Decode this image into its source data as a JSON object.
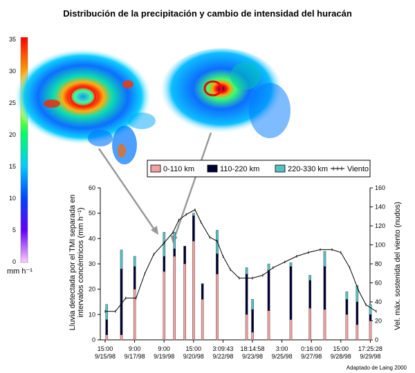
{
  "title": "Distribución de la precipitación y cambio de intensidad del huracán",
  "credit": "Adaptado de Laing 2000",
  "colorbar": {
    "unit": "mm h⁻¹",
    "ticks": [
      "35",
      "30",
      "25",
      "20",
      "15",
      "10",
      "5",
      "0"
    ],
    "colors": [
      "#ff0000",
      "#ff9900",
      "#ffff00",
      "#00ff66",
      "#00ccff",
      "#0044ff",
      "#6600ff",
      "#ffccff"
    ]
  },
  "legend": [
    {
      "label": "0-110 km",
      "color": "#f2a0a0"
    },
    {
      "label": "110-220 km",
      "color": "#000033"
    },
    {
      "label": "220-330 km",
      "color": "#55c2c2"
    },
    {
      "label": "Viento",
      "color": "#000000"
    }
  ],
  "chart_data": {
    "type": "bar",
    "ylabel": "Lluvia detectada por el TMI separada en intervalos concéntricos (mm h⁻¹)",
    "y2label": "Vel. máx. sostenida del viento (nudos)",
    "ylim": [
      0,
      60
    ],
    "y2lim": [
      0,
      160
    ],
    "yticks": [
      "0",
      "10",
      "20",
      "30",
      "40",
      "50",
      "60"
    ],
    "y2ticks": [
      "0",
      "20",
      "40",
      "60",
      "80",
      "100",
      "120",
      "140",
      "160"
    ],
    "xticks": [
      {
        "time": "15:00",
        "date": "9/15/98"
      },
      {
        "time": "9:00",
        "date": "9/17/98"
      },
      {
        "time": "9:00",
        "date": "9/19/98"
      },
      {
        "time": "15:00",
        "date": "9/20/98"
      },
      {
        "time": "3:09:43",
        "date": "9/22/98"
      },
      {
        "time": "18:14:58",
        "date": "9/23/98"
      },
      {
        "time": "3:00",
        "date": "9/25/98"
      },
      {
        "time": "0:16:00",
        "date": "9/27/98"
      },
      {
        "time": "15:00",
        "date": "9/28/98"
      },
      {
        "time": "17:25:28",
        "date": "9/29/98"
      }
    ],
    "stacked_bars": [
      {
        "pos": 0.05,
        "v": [
          2,
          6,
          6
        ]
      },
      {
        "pos": 0.55,
        "v": [
          2,
          26,
          7.5
        ]
      },
      {
        "pos": 1.0,
        "v": [
          20,
          9,
          4
        ]
      },
      {
        "pos": 2.0,
        "v": [
          27,
          6,
          9.5
        ]
      },
      {
        "pos": 2.35,
        "v": [
          33,
          3,
          6.5
        ]
      },
      {
        "pos": 2.7,
        "v": [
          30,
          7,
          0
        ]
      },
      {
        "pos": 3.0,
        "v": [
          39,
          10,
          1
        ]
      },
      {
        "pos": 3.3,
        "v": [
          16,
          6,
          0.3
        ]
      },
      {
        "pos": 3.8,
        "v": [
          26,
          8,
          9.3
        ]
      },
      {
        "pos": 4.8,
        "v": [
          10,
          16,
          2.5
        ]
      },
      {
        "pos": 5.0,
        "v": [
          3,
          9,
          4
        ]
      },
      {
        "pos": 5.55,
        "v": [
          11.5,
          16,
          2.5
        ]
      },
      {
        "pos": 6.3,
        "v": [
          8,
          21,
          1.5
        ]
      },
      {
        "pos": 6.95,
        "v": [
          12.5,
          11,
          2
        ]
      },
      {
        "pos": 7.45,
        "v": [
          12,
          17,
          6
        ]
      },
      {
        "pos": 8.2,
        "v": [
          10,
          6,
          3
        ]
      },
      {
        "pos": 8.55,
        "v": [
          6,
          9,
          6.5
        ]
      },
      {
        "pos": 9.0,
        "v": [
          7.5,
          2.5,
          4
        ]
      }
    ],
    "wind": [
      [
        0,
        30
      ],
      [
        0.35,
        30
      ],
      [
        0.7,
        44
      ],
      [
        1.05,
        44
      ],
      [
        1.35,
        70
      ],
      [
        1.65,
        90
      ],
      [
        2.0,
        102
      ],
      [
        2.3,
        113
      ],
      [
        2.5,
        126
      ],
      [
        2.75,
        132
      ],
      [
        3.05,
        137
      ],
      [
        3.25,
        124
      ],
      [
        3.55,
        108
      ],
      [
        3.8,
        104
      ],
      [
        4.0,
        88
      ],
      [
        4.25,
        74
      ],
      [
        4.55,
        65
      ],
      [
        5.0,
        65
      ],
      [
        5.35,
        68
      ],
      [
        5.7,
        76
      ],
      [
        6.1,
        82
      ],
      [
        6.5,
        88
      ],
      [
        6.9,
        92
      ],
      [
        7.3,
        95
      ],
      [
        7.7,
        95
      ],
      [
        8.0,
        92
      ],
      [
        8.3,
        76
      ],
      [
        8.6,
        52
      ],
      [
        8.85,
        37
      ],
      [
        9.2,
        30
      ]
    ]
  }
}
